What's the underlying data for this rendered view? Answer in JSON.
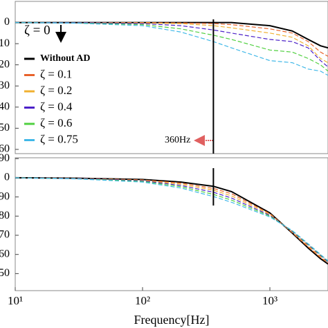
{
  "chart_data": [
    {
      "type": "line",
      "log_x": true,
      "xlim": [
        10,
        2860
      ],
      "ylim": [
        10,
        -62
      ],
      "yticks": [
        0,
        {
          "value": -10,
          "label": "10"
        },
        {
          "value": -20,
          "label": "20"
        },
        {
          "value": -30,
          "label": "30"
        },
        {
          "value": -40,
          "label": "40"
        },
        {
          "value": -50,
          "label": "50"
        },
        {
          "value": -60,
          "label": "60"
        }
      ],
      "x": [
        10,
        30,
        100,
        200,
        360,
        500,
        1000,
        1500,
        2000,
        2500,
        2860
      ],
      "legend": "left",
      "annotations": [
        {
          "text": "ζ = 0"
        },
        {
          "text": "360Hz"
        }
      ],
      "marker_x": 360,
      "series": [
        {
          "name": "Without AD",
          "color": "#000000",
          "dashed": false,
          "values": [
            0,
            0,
            0,
            0,
            0,
            0,
            -1.5,
            -4,
            -8,
            -11,
            -12
          ]
        },
        {
          "name": "ζ  = 0.1",
          "color": "#e8622a",
          "dashed": true,
          "values": [
            0,
            0,
            0,
            -0.2,
            -0.5,
            -1,
            -3,
            -5,
            -9,
            -14,
            -16
          ]
        },
        {
          "name": "ζ  = 0.2",
          "color": "#f0b030",
          "dashed": true,
          "values": [
            0,
            0,
            -0.2,
            -0.5,
            -1.5,
            -2.5,
            -5,
            -7,
            -11,
            -17,
            -19
          ]
        },
        {
          "name": "ζ  = 0.4",
          "color": "#4b20c8",
          "dashed": true,
          "values": [
            0,
            0,
            -0.5,
            -1.5,
            -3.5,
            -5,
            -8,
            -9,
            -12,
            -18,
            -21
          ]
        },
        {
          "name": "ζ  = 0.6",
          "color": "#50d040",
          "dashed": true,
          "values": [
            0,
            -0.2,
            -1,
            -3,
            -6,
            -8,
            -13,
            -14,
            -17,
            -20,
            -23
          ]
        },
        {
          "name": "ζ  = 0.75",
          "color": "#40b8e8",
          "dashed": true,
          "values": [
            0,
            -0.3,
            -1.5,
            -4.5,
            -9,
            -12,
            -18,
            -19,
            -22,
            -23,
            -25
          ]
        }
      ]
    },
    {
      "type": "line",
      "log_x": true,
      "xlim": [
        10,
        2860
      ],
      "ylim": [
        94,
        -530
      ],
      "xlabel": "Frequency[Hz]",
      "xticks": [
        {
          "value": 10,
          "label": "10¹"
        },
        {
          "value": 100,
          "label": "10²"
        },
        {
          "value": 1000,
          "label": "10³"
        }
      ],
      "yticks": [
        90,
        0,
        {
          "value": -90,
          "label": "90"
        },
        {
          "value": -180,
          "label": "80"
        },
        {
          "value": -270,
          "label": "70"
        },
        {
          "value": -360,
          "label": "60"
        },
        {
          "value": -450,
          "label": "50"
        }
      ],
      "x": [
        10,
        30,
        100,
        200,
        360,
        500,
        1000,
        1500,
        2000,
        2500,
        2860
      ],
      "marker_x": 360,
      "series": [
        {
          "color": "#000000",
          "dashed": false,
          "values": [
            0,
            -2,
            -8,
            -20,
            -40,
            -65,
            -165,
            -260,
            -330,
            -380,
            -405
          ]
        },
        {
          "color": "#e8622a",
          "dashed": true,
          "values": [
            0,
            -2,
            -10,
            -25,
            -50,
            -75,
            -168,
            -258,
            -325,
            -375,
            -400
          ]
        },
        {
          "color": "#f0b030",
          "dashed": true,
          "values": [
            0,
            -3,
            -12,
            -30,
            -58,
            -85,
            -172,
            -255,
            -320,
            -370,
            -398
          ]
        },
        {
          "color": "#4b20c8",
          "dashed": true,
          "values": [
            0,
            -3,
            -14,
            -36,
            -68,
            -95,
            -176,
            -252,
            -315,
            -365,
            -395
          ]
        },
        {
          "color": "#50d040",
          "dashed": true,
          "values": [
            0,
            -4,
            -17,
            -42,
            -78,
            -105,
            -180,
            -250,
            -312,
            -362,
            -392
          ]
        },
        {
          "color": "#40b8e8",
          "dashed": true,
          "values": [
            0,
            -5,
            -20,
            -48,
            -88,
            -115,
            -184,
            -248,
            -310,
            -360,
            -390
          ]
        }
      ]
    }
  ]
}
